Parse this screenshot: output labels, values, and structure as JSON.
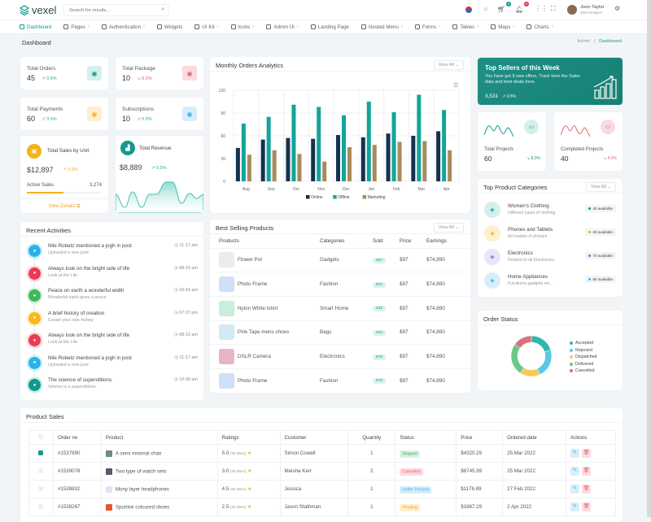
{
  "brand": {
    "name": "vexel"
  },
  "search": {
    "placeholder": "Search for results..."
  },
  "header": {
    "cart_count": "5",
    "notif_count": "4",
    "user_name": "Joon Taylor",
    "user_role": "Web Designer"
  },
  "nav": [
    {
      "label": "Dashboard",
      "active": true
    },
    {
      "label": "Pages",
      "chev": true
    },
    {
      "label": "Authentication",
      "chev": true
    },
    {
      "label": "Widgets"
    },
    {
      "label": "UI Kit",
      "chev": true
    },
    {
      "label": "Icons",
      "chev": true
    },
    {
      "label": "Admin UI",
      "chev": true
    },
    {
      "label": "Landing Page"
    },
    {
      "label": "Nested Menu",
      "chev": true
    },
    {
      "label": "Forms",
      "chev": true
    },
    {
      "label": "Tables",
      "chev": true
    },
    {
      "label": "Maps",
      "chev": true
    },
    {
      "label": "Charts",
      "chev": true
    }
  ],
  "page": {
    "title": "Dashboard",
    "crumb_root": "Admin",
    "crumb_sep": "/",
    "crumb_current": "Dashboard"
  },
  "stats": [
    {
      "label": "Total Orders",
      "value": "45",
      "change": "0.5%",
      "trend": "up",
      "icon": "user-icon",
      "bg": "#d3f0ed",
      "fg": "#14998d"
    },
    {
      "label": "Total Package",
      "value": "10",
      "change": "8.0%",
      "trend": "down",
      "icon": "box-icon",
      "bg": "#fadadd",
      "fg": "#e2656f"
    },
    {
      "label": "Total Payments",
      "value": "60",
      "change": "3.5%",
      "trend": "up",
      "icon": "credit-card-icon",
      "bg": "#fdf0cf",
      "fg": "#f3b21e"
    },
    {
      "label": "Subscriptions",
      "value": "10",
      "change": "0.5%",
      "trend": "up",
      "icon": "user-plus-icon",
      "bg": "#d7eefa",
      "fg": "#3aaee0"
    }
  ],
  "sales_unit": {
    "title": "Total Sales by Unit",
    "value": "$12,897",
    "change": "3.5%",
    "active_label": "Active Sales",
    "active_value": "3,274",
    "progress_pct": 50,
    "link": "View Details"
  },
  "revenue": {
    "title": "Total Revenue",
    "value": "$8,889",
    "change": "5.5%"
  },
  "monthly": {
    "title": "Monthly Orders Analytics",
    "view_all": "View All"
  },
  "chart_data": {
    "type": "bar",
    "title": "Monthly Orders Analytics",
    "categories": [
      "Aug",
      "Sep",
      "Oct",
      "Nov",
      "Dec",
      "Jan",
      "Feb",
      "Mar",
      "Apr"
    ],
    "ylim": [
      0,
      120
    ],
    "yticks": [
      0,
      30,
      60,
      90,
      120
    ],
    "grid": true,
    "legend": "bottom",
    "series": [
      {
        "name": "Online",
        "color": "#13324e",
        "values": [
          44,
          55,
          57,
          56,
          61,
          58,
          63,
          60,
          66
        ]
      },
      {
        "name": "Offline",
        "color": "#12a59a",
        "values": [
          76,
          85,
          101,
          98,
          87,
          105,
          91,
          114,
          94
        ]
      },
      {
        "name": "Marketing",
        "color": "#a88b5c",
        "values": [
          35,
          41,
          36,
          26,
          45,
          48,
          52,
          53,
          41
        ]
      }
    ]
  },
  "top_sellers": {
    "title": "Top Sellers of this Week",
    "text": "You have got 5 new offers, Track here the Sales data and best deals here.",
    "value": "3,531",
    "change": "0.5%"
  },
  "projects": [
    {
      "label": "Total Projects",
      "value": "60",
      "change": "8.0%",
      "color": "#14998d"
    },
    {
      "label": "Completed Projects",
      "value": "40",
      "change": "4.0%",
      "color": "#e2656f"
    }
  ],
  "activities": {
    "title": "Recent Activities",
    "items": [
      {
        "title": "Nile Robetz mentioned a jogh in post",
        "sub": "Uploaded a new post",
        "time": "11:17 am",
        "color": "#28b4e8"
      },
      {
        "title": "Always look on the bright side of life",
        "sub": "Look at the Life",
        "time": "08:19 am",
        "color": "#ea3a55"
      },
      {
        "title": "Peace on earth a wonderful width",
        "sub": "Wonderful earth gives a peace",
        "time": "10:43 am",
        "color": "#3eb85c"
      },
      {
        "title": "A brief history of creation",
        "sub": "Create your own history",
        "time": "07:27 pm",
        "color": "#f8b81c"
      },
      {
        "title": "Always look on the bright side of life",
        "sub": "Look at the Life",
        "time": "08:19 am",
        "color": "#ea3a55"
      },
      {
        "title": "Nile Robetz mentioned a jogh in post",
        "sub": "Uploaded a new post",
        "time": "11:17 am",
        "color": "#28b4e8"
      },
      {
        "title": "The science of superstitions.",
        "sub": "Volume is a superstitions",
        "time": "10:09 am",
        "color": "#14998d"
      }
    ]
  },
  "best_selling": {
    "title": "Best Selling Products",
    "view_all": "View All",
    "headers": [
      "Products",
      "Categories",
      "Sold",
      "Price",
      "Earnings"
    ],
    "rows": [
      {
        "name": "Flower Pot",
        "cat": "Gadgets",
        "sold": "457",
        "price": "$97",
        "earn": "$74,890",
        "thumb": "#ececec"
      },
      {
        "name": "Photo Frame",
        "cat": "Fashion",
        "sold": "876",
        "price": "$97",
        "earn": "$74,890",
        "thumb": "#cfe0f7"
      },
      {
        "name": "Nylon White tshirt",
        "cat": "Smart Home",
        "sold": "432",
        "price": "$97",
        "earn": "$74,890",
        "thumb": "#c8eedc"
      },
      {
        "name": "Pink Tape mens shoes",
        "cat": "Bags",
        "sold": "234",
        "price": "$97",
        "earn": "$74,890",
        "thumb": "#d2e9f5"
      },
      {
        "name": "DSLR Camera",
        "cat": "Electronics",
        "sold": "678",
        "price": "$97",
        "earn": "$74,890",
        "thumb": "#e9b4c9"
      },
      {
        "name": "Photo Frame",
        "cat": "Fashion",
        "sold": "876",
        "price": "$97",
        "earn": "$74,890",
        "thumb": "#cfe0f7"
      }
    ]
  },
  "categories": {
    "title": "Top Product Categories",
    "view_all": "View All",
    "items": [
      {
        "title": "Women's Clothing",
        "sub": "Different types of clothing",
        "badge": "40 available",
        "bg": "#d3f0ed",
        "fg": "#14998d"
      },
      {
        "title": "Phones and Tablets",
        "sub": "All models of phones",
        "badge": "60 available",
        "bg": "#fdf0cf",
        "fg": "#f3a91e"
      },
      {
        "title": "Electronics",
        "sub": "Related to all Electronics",
        "badge": "70 available",
        "bg": "#e7e6f8",
        "fg": "#7a6fd6"
      },
      {
        "title": "Home Appliances",
        "sub": "Furnitures,gadgets etc...",
        "badge": "80 available",
        "bg": "#d7eefa",
        "fg": "#3aaee0"
      }
    ]
  },
  "order_status": {
    "title": "Order Status",
    "chart_data": {
      "type": "pie",
      "labels": [
        "Accepted",
        "Rejected",
        "Dispatched",
        "Delivered",
        "Cancelled"
      ],
      "values": [
        20,
        23,
        16,
        26,
        15
      ],
      "colors": [
        "#2fb7af",
        "#5bc6ea",
        "#f8c957",
        "#6ec78a",
        "#d9717d"
      ]
    }
  },
  "product_sales": {
    "title": "Product Sales",
    "headers": [
      "",
      "Order no",
      "Product",
      "Ratings",
      "Customer",
      "Quantity",
      "Status",
      "Price",
      "Ordered date",
      "Actions"
    ],
    "rows": [
      {
        "checked": true,
        "order": "#1537890",
        "product": "A semi minimal chair",
        "rating": "5.0",
        "reviews": "(90 Mem)",
        "customer": "Simon Cowall",
        "qty": "1",
        "status": "Shipped",
        "sbg": "#dcf3e3",
        "sfg": "#3aa860",
        "price": "$4320.29",
        "date": "25 Mar 2022",
        "thumb": "#6e8a86"
      },
      {
        "checked": false,
        "order": "#1539078",
        "product": "Two type of watch sets",
        "rating": "3.0",
        "reviews": "(50 Mem)",
        "customer": "Meisha Kerr",
        "qty": "2",
        "status": "Cancelled",
        "sbg": "#fbdbe0",
        "sfg": "#e2656f",
        "price": "$6745.99",
        "date": "25 Mar 2022",
        "thumb": "#555a66"
      },
      {
        "checked": false,
        "order": "#1539832",
        "product": "Mony layer headphones",
        "rating": "4.5",
        "reviews": "(65 Mem)",
        "customer": "Jessica",
        "qty": "1",
        "status": "Under Process",
        "sbg": "#d7eefa",
        "sfg": "#3aaee0",
        "price": "$1176.89",
        "date": "27 Feb 2022",
        "thumb": "#dfe4fb"
      },
      {
        "checked": false,
        "order": "#1538267",
        "product": "Sportive coloured shoes",
        "rating": "2.5",
        "reviews": "(15 Mem)",
        "customer": "Jason Stathman",
        "qty": "1",
        "status": "Pending",
        "sbg": "#fdf0cf",
        "sfg": "#e9a51c",
        "price": "$1867.29",
        "date": "2 Apr 2022",
        "thumb": "#e6562e"
      }
    ]
  }
}
